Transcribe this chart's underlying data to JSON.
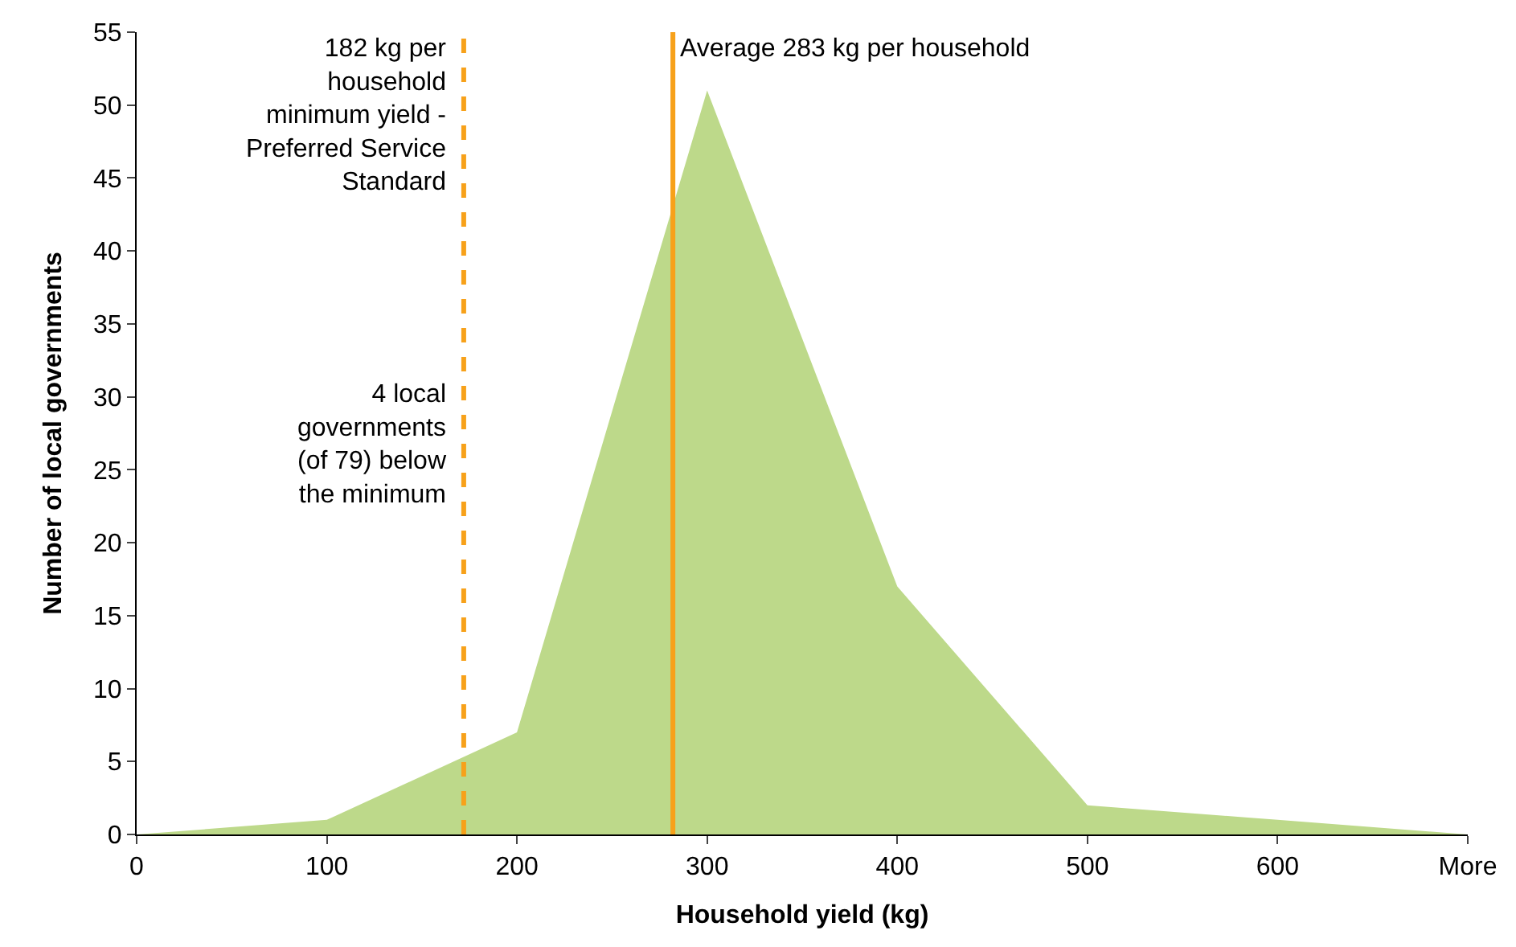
{
  "chart_data": {
    "type": "area",
    "xlabel": "Household yield (kg)",
    "ylabel": "Number of local governments",
    "x": [
      0,
      100,
      200,
      300,
      400,
      500,
      600,
      700
    ],
    "series": [
      {
        "color": "#bdd98a",
        "values": [
          0,
          1,
          7,
          51,
          17,
          2,
          1,
          0
        ]
      }
    ],
    "xlim": [
      0,
      700
    ],
    "xticks": [
      0,
      100,
      200,
      300,
      400,
      500,
      600,
      {
        "value": 700,
        "label": "More"
      }
    ],
    "ylim": [
      0,
      55
    ],
    "yticks": [
      0,
      5,
      10,
      15,
      20,
      25,
      30,
      35,
      40,
      45,
      50,
      55
    ],
    "ref_lines": [
      {
        "axis": "x",
        "value": 172,
        "label": "182 kg per\nhousehold\nminimum yield -\nPreferred Service\nStandard",
        "color": "#f7a11a",
        "line_style": "dashed"
      },
      {
        "axis": "x",
        "value": 282,
        "label": "Average 283 kg per household",
        "color": "#f7a11a",
        "line_style": "solid"
      }
    ],
    "annotations": [
      "4 local\ngovernments\n(of 79) below\nthe minimum"
    ]
  }
}
